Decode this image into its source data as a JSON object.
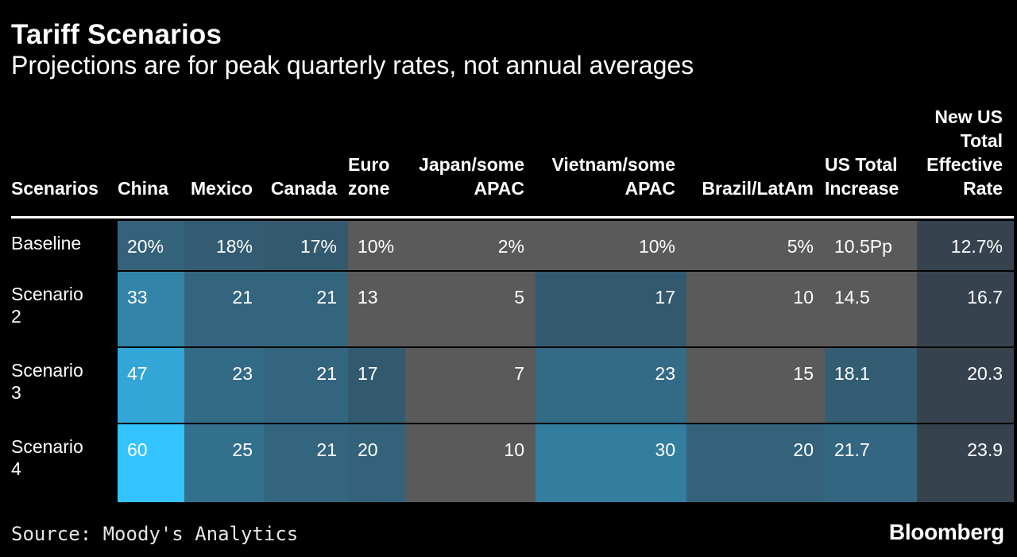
{
  "header": {
    "title": "Tariff Scenarios",
    "subtitle": "Projections are for peak quarterly rates, not annual averages"
  },
  "footer": {
    "source": "Source: Moody's Analytics",
    "brand": "Bloomberg"
  },
  "colors": {
    "background": "#000000",
    "gray": "#5a5a5a",
    "dark_slate": "#36434f",
    "heat_low": "#33414d",
    "heat_high": "#33c3ff"
  },
  "chart_data": {
    "type": "table",
    "title": "Tariff Scenarios",
    "subtitle": "Projections are for peak quarterly rates, not annual averages",
    "columns": [
      {
        "key": "scenario",
        "lines": [
          "Scenarios"
        ]
      },
      {
        "key": "china",
        "lines": [
          "China"
        ]
      },
      {
        "key": "mexico",
        "lines": [
          "Mexico"
        ]
      },
      {
        "key": "canada",
        "lines": [
          "Canada"
        ]
      },
      {
        "key": "eurozone",
        "lines": [
          "Euro",
          "zone"
        ]
      },
      {
        "key": "japan",
        "lines": [
          "Japan/some",
          "APAC"
        ]
      },
      {
        "key": "vietnam",
        "lines": [
          "Vietnam/some",
          "APAC"
        ]
      },
      {
        "key": "brazil",
        "lines": [
          "Brazil/LatAm"
        ]
      },
      {
        "key": "us_total_increase",
        "lines": [
          "US Total",
          "Increase"
        ]
      },
      {
        "key": "new_us_rate",
        "lines": [
          "New US",
          "Total",
          "Effective",
          "Rate"
        ]
      }
    ],
    "rows": [
      {
        "label": [
          "Baseline"
        ],
        "cells": [
          "20%",
          "18%",
          "17%",
          "10%",
          "2%",
          "10%",
          "5%",
          "10.5Pp",
          "12.7%"
        ],
        "values": [
          20,
          18,
          17,
          10,
          2,
          10,
          5,
          10.5,
          12.7
        ]
      },
      {
        "label": [
          "Scenario",
          "2"
        ],
        "cells": [
          "33",
          "21",
          "21",
          "13",
          "5",
          "17",
          "10",
          "14.5",
          "16.7"
        ],
        "values": [
          33,
          21,
          21,
          13,
          5,
          17,
          10,
          14.5,
          16.7
        ]
      },
      {
        "label": [
          "Scenario",
          "3"
        ],
        "cells": [
          "47",
          "23",
          "21",
          "17",
          "7",
          "23",
          "15",
          "18.1",
          "20.3"
        ],
        "values": [
          47,
          23,
          21,
          17,
          7,
          23,
          15,
          18.1,
          20.3
        ]
      },
      {
        "label": [
          "Scenario",
          "4"
        ],
        "cells": [
          "60",
          "25",
          "21",
          "20",
          "10",
          "30",
          "20",
          "21.7",
          "23.9"
        ],
        "values": [
          60,
          25,
          21,
          20,
          10,
          30,
          20,
          21.7,
          23.9
        ]
      }
    ],
    "color_scale": {
      "low": 10,
      "high": 60
    },
    "source": "Source: Moody's Analytics"
  }
}
